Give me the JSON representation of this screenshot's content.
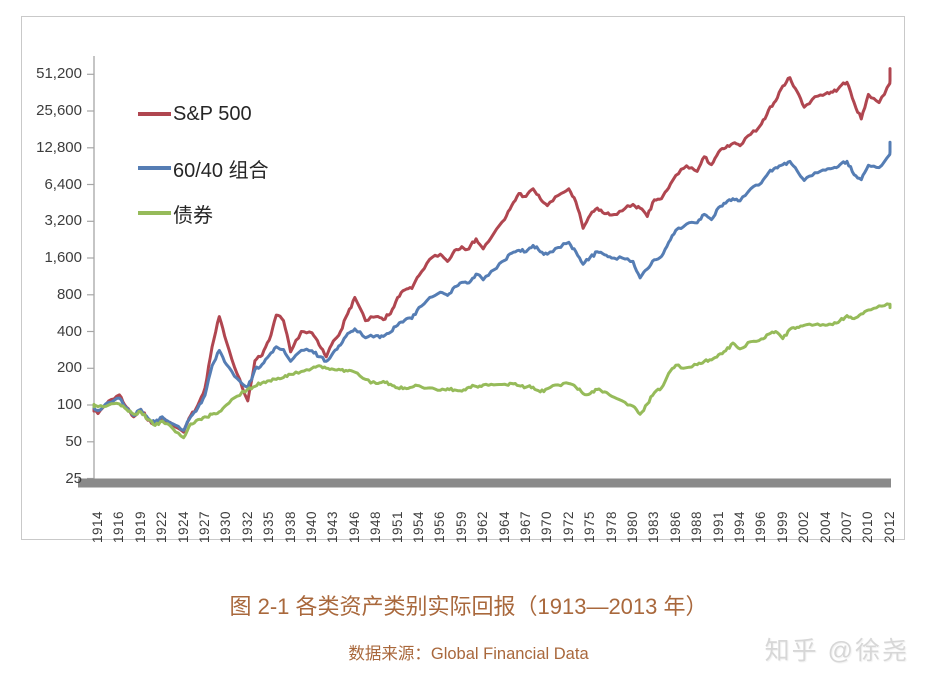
{
  "caption": {
    "title": "图 2-1 各类资产类别实际回报（1913—2013 年）",
    "source": "数据来源：Global Financial Data"
  },
  "watermark": "知乎 @徐尧",
  "chart_data": {
    "type": "line",
    "title": "图 2-1 各类资产类别实际回报（1913—2013 年）",
    "x_axis_range": [
      1913,
      2013
    ],
    "y_axis": {
      "scale": "log-base-2",
      "tick_values": [
        51200,
        25600,
        12800,
        6400,
        3200,
        1600,
        800,
        400,
        200,
        100,
        50,
        25
      ],
      "tick_labels": [
        "51,200",
        "25,600",
        "12,800",
        "6,400",
        "3,200",
        "1,600",
        "800",
        "400",
        "200",
        "100",
        "50",
        "25"
      ]
    },
    "x_axis": {
      "tick_labels": [
        "1914",
        "1916",
        "1919",
        "1922",
        "1924",
        "1927",
        "1930",
        "1932",
        "1935",
        "1938",
        "1940",
        "1943",
        "1946",
        "1948",
        "1951",
        "1954",
        "1956",
        "1959",
        "1962",
        "1964",
        "1967",
        "1970",
        "1972",
        "1975",
        "1978",
        "1980",
        "1983",
        "1986",
        "1988",
        "1991",
        "1994",
        "1996",
        "1999",
        "2002",
        "2004",
        "2007",
        "2010",
        "2012"
      ]
    },
    "legend_position": "top-left-inside",
    "grid": false,
    "series": [
      {
        "name": "S&P 500",
        "color": "#b04650",
        "points": [
          [
            1913,
            100
          ],
          [
            1914,
            85
          ],
          [
            1915,
            108
          ],
          [
            1916,
            121
          ],
          [
            1917,
            96
          ],
          [
            1918,
            80
          ],
          [
            1919,
            92
          ],
          [
            1920,
            75
          ],
          [
            1921,
            70
          ],
          [
            1922,
            78
          ],
          [
            1923,
            68
          ],
          [
            1924,
            60
          ],
          [
            1925,
            82
          ],
          [
            1926,
            100
          ],
          [
            1927,
            138
          ],
          [
            1928,
            300
          ],
          [
            1929,
            530
          ],
          [
            1930,
            330
          ],
          [
            1931,
            180
          ],
          [
            1932,
            108
          ],
          [
            1933,
            230
          ],
          [
            1934,
            255
          ],
          [
            1935,
            340
          ],
          [
            1936,
            545
          ],
          [
            1937,
            490
          ],
          [
            1938,
            272
          ],
          [
            1939,
            400
          ],
          [
            1940,
            390
          ],
          [
            1941,
            310
          ],
          [
            1942,
            248
          ],
          [
            1943,
            335
          ],
          [
            1944,
            400
          ],
          [
            1945,
            560
          ],
          [
            1946,
            760
          ],
          [
            1947,
            490
          ],
          [
            1948,
            530
          ],
          [
            1949,
            500
          ],
          [
            1950,
            560
          ],
          [
            1951,
            760
          ],
          [
            1952,
            875
          ],
          [
            1953,
            900
          ],
          [
            1954,
            1150
          ],
          [
            1955,
            1560
          ],
          [
            1956,
            1720
          ],
          [
            1957,
            1500
          ],
          [
            1958,
            1850
          ],
          [
            1959,
            1980
          ],
          [
            1960,
            1900
          ],
          [
            1961,
            2300
          ],
          [
            1962,
            1900
          ],
          [
            1963,
            2550
          ],
          [
            1964,
            3300
          ],
          [
            1965,
            4300
          ],
          [
            1966,
            5400
          ],
          [
            1967,
            5100
          ],
          [
            1968,
            5900
          ],
          [
            1969,
            4900
          ],
          [
            1970,
            4300
          ],
          [
            1971,
            5200
          ],
          [
            1972,
            5900
          ],
          [
            1973,
            4600
          ],
          [
            1974,
            2800
          ],
          [
            1975,
            3600
          ],
          [
            1976,
            4100
          ],
          [
            1977,
            3700
          ],
          [
            1978,
            3600
          ],
          [
            1979,
            3900
          ],
          [
            1980,
            4400
          ],
          [
            1981,
            4100
          ],
          [
            1982,
            3500
          ],
          [
            1983,
            4800
          ],
          [
            1984,
            4900
          ],
          [
            1985,
            6000
          ],
          [
            1986,
            7600
          ],
          [
            1987,
            9100
          ],
          [
            1988,
            8200
          ],
          [
            1989,
            10800
          ],
          [
            1990,
            9300
          ],
          [
            1991,
            11800
          ],
          [
            1992,
            12800
          ],
          [
            1993,
            13900
          ],
          [
            1994,
            13300
          ],
          [
            1995,
            16500
          ],
          [
            1996,
            20000
          ],
          [
            1997,
            26000
          ],
          [
            1998,
            31000
          ],
          [
            1999,
            41000
          ],
          [
            2000,
            48000
          ],
          [
            2001,
            37000
          ],
          [
            2002,
            27500
          ],
          [
            2003,
            33500
          ],
          [
            2004,
            35500
          ],
          [
            2005,
            36500
          ],
          [
            2006,
            40500
          ],
          [
            2007,
            44000
          ],
          [
            2008,
            30000
          ],
          [
            2009,
            22000
          ],
          [
            2010,
            35000
          ],
          [
            2011,
            30000
          ],
          [
            2012,
            43000
          ],
          [
            2013,
            57000
          ]
        ]
      },
      {
        "name": "60/40 组合",
        "color": "#557db4",
        "points": [
          [
            1913,
            100
          ],
          [
            1914,
            90
          ],
          [
            1915,
            105
          ],
          [
            1916,
            114
          ],
          [
            1917,
            95
          ],
          [
            1918,
            82
          ],
          [
            1919,
            92
          ],
          [
            1920,
            78
          ],
          [
            1921,
            72
          ],
          [
            1922,
            80
          ],
          [
            1923,
            70
          ],
          [
            1924,
            62
          ],
          [
            1925,
            80
          ],
          [
            1926,
            95
          ],
          [
            1927,
            120
          ],
          [
            1928,
            210
          ],
          [
            1929,
            280
          ],
          [
            1930,
            215
          ],
          [
            1931,
            165
          ],
          [
            1932,
            140
          ],
          [
            1933,
            195
          ],
          [
            1934,
            215
          ],
          [
            1935,
            255
          ],
          [
            1936,
            300
          ],
          [
            1937,
            285
          ],
          [
            1938,
            228
          ],
          [
            1939,
            280
          ],
          [
            1940,
            278
          ],
          [
            1941,
            248
          ],
          [
            1942,
            228
          ],
          [
            1943,
            270
          ],
          [
            1944,
            310
          ],
          [
            1945,
            385
          ],
          [
            1946,
            420
          ],
          [
            1947,
            355
          ],
          [
            1948,
            370
          ],
          [
            1949,
            365
          ],
          [
            1950,
            395
          ],
          [
            1951,
            450
          ],
          [
            1952,
            495
          ],
          [
            1953,
            510
          ],
          [
            1954,
            630
          ],
          [
            1955,
            760
          ],
          [
            1956,
            840
          ],
          [
            1957,
            790
          ],
          [
            1958,
            930
          ],
          [
            1959,
            1010
          ],
          [
            1960,
            1000
          ],
          [
            1961,
            1180
          ],
          [
            1962,
            1060
          ],
          [
            1963,
            1280
          ],
          [
            1964,
            1530
          ],
          [
            1965,
            1750
          ],
          [
            1966,
            1850
          ],
          [
            1967,
            1800
          ],
          [
            1968,
            2030
          ],
          [
            1969,
            1800
          ],
          [
            1970,
            1720
          ],
          [
            1971,
            1950
          ],
          [
            1972,
            2150
          ],
          [
            1973,
            1800
          ],
          [
            1974,
            1420
          ],
          [
            1975,
            1620
          ],
          [
            1976,
            1800
          ],
          [
            1977,
            1700
          ],
          [
            1978,
            1600
          ],
          [
            1979,
            1600
          ],
          [
            1980,
            1500
          ],
          [
            1981,
            1100
          ],
          [
            1982,
            1300
          ],
          [
            1983,
            1550
          ],
          [
            1984,
            1650
          ],
          [
            1985,
            2150
          ],
          [
            1986,
            2700
          ],
          [
            1987,
            3030
          ],
          [
            1988,
            3100
          ],
          [
            1989,
            3640
          ],
          [
            1990,
            3300
          ],
          [
            1991,
            4150
          ],
          [
            1992,
            4500
          ],
          [
            1993,
            4900
          ],
          [
            1994,
            4700
          ],
          [
            1995,
            5900
          ],
          [
            1996,
            6600
          ],
          [
            1997,
            8000
          ],
          [
            1998,
            8800
          ],
          [
            1999,
            9300
          ],
          [
            2000,
            9900
          ],
          [
            2001,
            8300
          ],
          [
            2002,
            6900
          ],
          [
            2003,
            8000
          ],
          [
            2004,
            8400
          ],
          [
            2005,
            8700
          ],
          [
            2006,
            9300
          ],
          [
            2007,
            9900
          ],
          [
            2008,
            7700
          ],
          [
            2009,
            7000
          ],
          [
            2010,
            9200
          ],
          [
            2011,
            8800
          ],
          [
            2012,
            11300
          ],
          [
            2013,
            14200
          ]
        ]
      },
      {
        "name": "债券",
        "color": "#96bb5a",
        "points": [
          [
            1913,
            100
          ],
          [
            1914,
            97
          ],
          [
            1915,
            100
          ],
          [
            1916,
            102
          ],
          [
            1917,
            92
          ],
          [
            1918,
            84
          ],
          [
            1919,
            88
          ],
          [
            1920,
            76
          ],
          [
            1921,
            68
          ],
          [
            1922,
            74
          ],
          [
            1923,
            64
          ],
          [
            1924,
            54
          ],
          [
            1925,
            70
          ],
          [
            1926,
            76
          ],
          [
            1927,
            80
          ],
          [
            1928,
            84
          ],
          [
            1929,
            88
          ],
          [
            1930,
            100
          ],
          [
            1931,
            118
          ],
          [
            1932,
            135
          ],
          [
            1933,
            142
          ],
          [
            1934,
            152
          ],
          [
            1935,
            158
          ],
          [
            1936,
            162
          ],
          [
            1937,
            168
          ],
          [
            1938,
            178
          ],
          [
            1939,
            188
          ],
          [
            1940,
            200
          ],
          [
            1941,
            210
          ],
          [
            1942,
            200
          ],
          [
            1943,
            196
          ],
          [
            1944,
            194
          ],
          [
            1945,
            190
          ],
          [
            1946,
            186
          ],
          [
            1947,
            162
          ],
          [
            1948,
            150
          ],
          [
            1949,
            156
          ],
          [
            1950,
            148
          ],
          [
            1951,
            138
          ],
          [
            1952,
            138
          ],
          [
            1953,
            140
          ],
          [
            1954,
            144
          ],
          [
            1955,
            138
          ],
          [
            1956,
            132
          ],
          [
            1957,
            136
          ],
          [
            1958,
            133
          ],
          [
            1959,
            130
          ],
          [
            1960,
            140
          ],
          [
            1961,
            142
          ],
          [
            1962,
            146
          ],
          [
            1963,
            146
          ],
          [
            1964,
            148
          ],
          [
            1965,
            150
          ],
          [
            1966,
            144
          ],
          [
            1967,
            140
          ],
          [
            1968,
            140
          ],
          [
            1969,
            128
          ],
          [
            1970,
            136
          ],
          [
            1971,
            146
          ],
          [
            1972,
            150
          ],
          [
            1973,
            140
          ],
          [
            1974,
            124
          ],
          [
            1975,
            124
          ],
          [
            1976,
            134
          ],
          [
            1977,
            128
          ],
          [
            1978,
            118
          ],
          [
            1979,
            108
          ],
          [
            1980,
            98
          ],
          [
            1981,
            84
          ],
          [
            1982,
            102
          ],
          [
            1983,
            126
          ],
          [
            1984,
            138
          ],
          [
            1985,
            182
          ],
          [
            1986,
            212
          ],
          [
            1987,
            202
          ],
          [
            1988,
            214
          ],
          [
            1989,
            228
          ],
          [
            1990,
            234
          ],
          [
            1991,
            258
          ],
          [
            1992,
            278
          ],
          [
            1993,
            322
          ],
          [
            1994,
            288
          ],
          [
            1995,
            330
          ],
          [
            1996,
            348
          ],
          [
            1997,
            380
          ],
          [
            1998,
            400
          ],
          [
            1999,
            350
          ],
          [
            2000,
            418
          ],
          [
            2001,
            434
          ],
          [
            2002,
            450
          ],
          [
            2003,
            455
          ],
          [
            2004,
            450
          ],
          [
            2005,
            455
          ],
          [
            2006,
            490
          ],
          [
            2007,
            540
          ],
          [
            2008,
            510
          ],
          [
            2009,
            558
          ],
          [
            2010,
            600
          ],
          [
            2011,
            648
          ],
          [
            2012,
            665
          ],
          [
            2013,
            628
          ]
        ]
      }
    ]
  }
}
